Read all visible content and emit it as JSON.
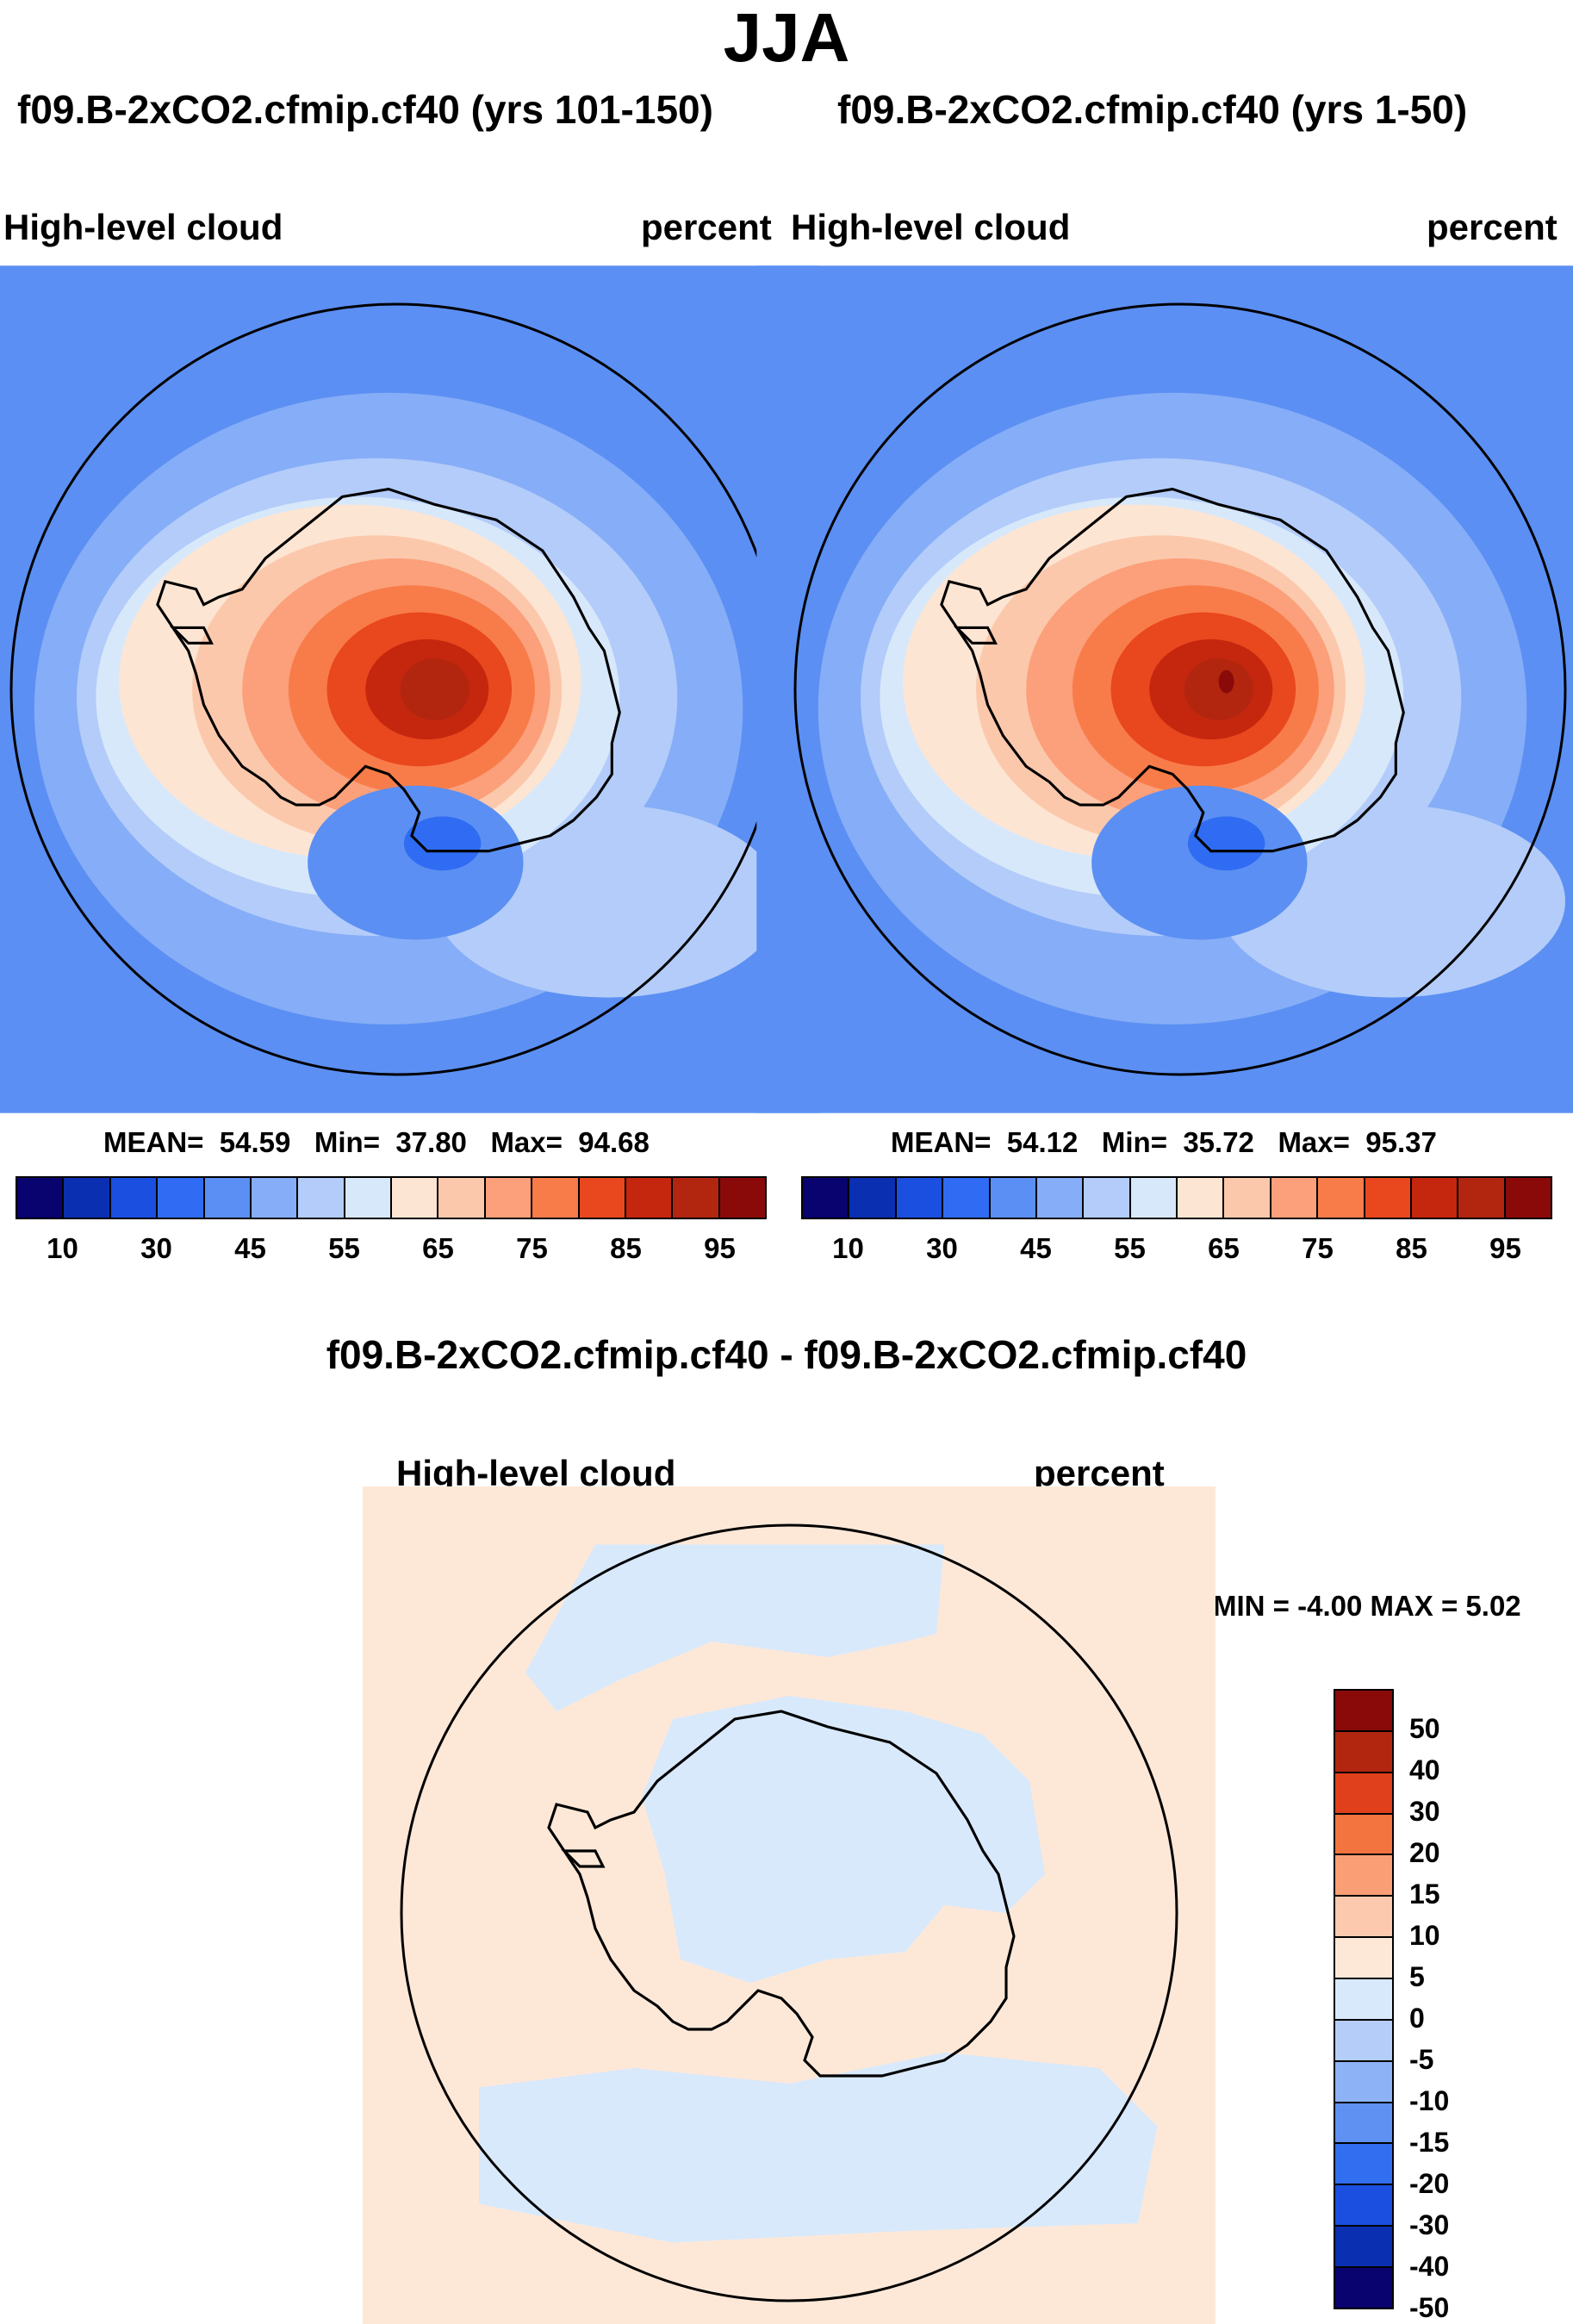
{
  "title": "JJA",
  "panel_left": {
    "case": "f09.B-2xCO2.cfmip.cf40 (yrs 101-150)",
    "variable": "High-level cloud",
    "units": "percent",
    "mean_label": "MEAN=",
    "mean": "54.59",
    "min_label": "Min=",
    "min": "37.80",
    "max_label": "Max=",
    "max": "94.68"
  },
  "panel_right": {
    "case": "f09.B-2xCO2.cfmip.cf40 (yrs 1-50)",
    "variable": "High-level cloud",
    "units": "percent",
    "mean_label": "MEAN=",
    "mean": "54.12",
    "min_label": "Min=",
    "min": "35.72",
    "max_label": "Max=",
    "max": "95.37"
  },
  "panel_diff": {
    "case": "f09.B-2xCO2.cfmip.cf40 - f09.B-2xCO2.cfmip.cf40",
    "variable": "High-level cloud",
    "units": "percent",
    "minmax": "MIN =  -4.00 MAX =   5.02"
  },
  "colorbar_abs": {
    "colors": [
      "#08036e",
      "#0a2fb0",
      "#1a4fe0",
      "#2f6cf3",
      "#5b8ff3",
      "#86adf7",
      "#b3ccf9",
      "#d7e8fb",
      "#fde5d3",
      "#fcc8ac",
      "#fba07a",
      "#f87c4a",
      "#e9471d",
      "#c5260e",
      "#b22610",
      "#8a0a0a"
    ],
    "tick_labels": [
      "10",
      "30",
      "45",
      "55",
      "65",
      "75",
      "85",
      "95"
    ]
  },
  "colorbar_diff": {
    "colors": [
      "#8a0a0a",
      "#b22610",
      "#e0401b",
      "#f4743f",
      "#fa9f75",
      "#fcc9ae",
      "#fde8d8",
      "#d8e9fb",
      "#b5cef9",
      "#8db2f6",
      "#5f91f2",
      "#326ef0",
      "#1a4fe0",
      "#0a2fb0",
      "#08036e"
    ],
    "tick_labels": [
      "50",
      "40",
      "30",
      "20",
      "15",
      "10",
      "5",
      "0",
      "-5",
      "-10",
      "-15",
      "-20",
      "-30",
      "-40",
      "-50"
    ]
  },
  "chart_data": [
    {
      "type": "heatmap",
      "title": "f09.B-2xCO2.cfmip.cf40 (yrs 101-150)",
      "variable": "High-level cloud",
      "units": "percent",
      "projection": "south polar stereographic",
      "levels": [
        10,
        20,
        30,
        40,
        45,
        50,
        55,
        60,
        65,
        70,
        75,
        80,
        85,
        90,
        95
      ],
      "stats": {
        "mean": 54.59,
        "min": 37.8,
        "max": 94.68
      }
    },
    {
      "type": "heatmap",
      "title": "f09.B-2xCO2.cfmip.cf40 (yrs 1-50)",
      "variable": "High-level cloud",
      "units": "percent",
      "projection": "south polar stereographic",
      "levels": [
        10,
        20,
        30,
        40,
        45,
        50,
        55,
        60,
        65,
        70,
        75,
        80,
        85,
        90,
        95
      ],
      "stats": {
        "mean": 54.12,
        "min": 35.72,
        "max": 95.37
      }
    },
    {
      "type": "heatmap",
      "title": "f09.B-2xCO2.cfmip.cf40 - f09.B-2xCO2.cfmip.cf40",
      "variable": "High-level cloud",
      "units": "percent",
      "projection": "south polar stereographic",
      "levels": [
        -50,
        -40,
        -30,
        -20,
        -15,
        -10,
        -5,
        0,
        5,
        10,
        15,
        20,
        30,
        40,
        50
      ],
      "stats": {
        "min": -4.0,
        "max": 5.02
      }
    }
  ]
}
